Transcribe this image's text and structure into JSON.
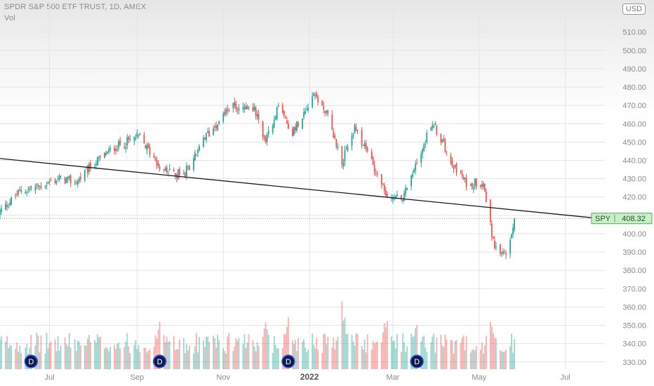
{
  "header": {
    "symbol_title": "SPDR S&P 500 ETF TRUST, 1D, AMEX",
    "volume_label": "Vol",
    "currency": "USD"
  },
  "colors": {
    "up": "#26a69a",
    "down": "#ef5350",
    "trendline": "#1a1a1a",
    "price_tag_bg": "#c8f0c8",
    "price_tag_border": "#4caf50"
  },
  "chart_data": {
    "type": "candlestick",
    "title": "SPDR S&P 500 ETF TRUST, 1D, AMEX",
    "ylim": [
      328,
      516
    ],
    "y_ticks": [
      330,
      340,
      350,
      360,
      370,
      380,
      390,
      400,
      410,
      420,
      430,
      440,
      450,
      460,
      470,
      480,
      490,
      500,
      510
    ],
    "y_tick_labels": [
      "330.00",
      "340.00",
      "350.00",
      "360.00",
      "370.00",
      "380.00",
      "390.00",
      "400.00",
      "410.00",
      "420.00",
      "430.00",
      "440.00",
      "450.00",
      "460.00",
      "470.00",
      "480.00",
      "490.00",
      "500.00",
      "510.00"
    ],
    "x_range": [
      "2021-05-27",
      "2022-07-29"
    ],
    "x_ticks": [
      {
        "date": "2021-07-01",
        "label": "Jul"
      },
      {
        "date": "2021-09-01",
        "label": "Sep"
      },
      {
        "date": "2021-11-01",
        "label": "Nov"
      },
      {
        "date": "2022-01-01",
        "label": "2022"
      },
      {
        "date": "2022-03-01",
        "label": "Mar"
      },
      {
        "date": "2022-05-01",
        "label": "May"
      },
      {
        "date": "2022-07-01",
        "label": "Jul"
      }
    ],
    "grid": true,
    "close_path": [
      {
        "date": "2021-05-27",
        "close": 412
      },
      {
        "date": "2021-06-10",
        "close": 423
      },
      {
        "date": "2021-06-25",
        "close": 426
      },
      {
        "date": "2021-07-08",
        "close": 430
      },
      {
        "date": "2021-07-20",
        "close": 428
      },
      {
        "date": "2021-08-01",
        "close": 438
      },
      {
        "date": "2021-08-16",
        "close": 447
      },
      {
        "date": "2021-09-02",
        "close": 453
      },
      {
        "date": "2021-09-20",
        "close": 434
      },
      {
        "date": "2021-10-04",
        "close": 432
      },
      {
        "date": "2021-10-20",
        "close": 453
      },
      {
        "date": "2021-11-05",
        "close": 469
      },
      {
        "date": "2021-11-22",
        "close": 469
      },
      {
        "date": "2021-12-01",
        "close": 451
      },
      {
        "date": "2021-12-10",
        "close": 470
      },
      {
        "date": "2021-12-20",
        "close": 455
      },
      {
        "date": "2022-01-04",
        "close": 477
      },
      {
        "date": "2022-01-14",
        "close": 464
      },
      {
        "date": "2022-01-24",
        "close": 439
      },
      {
        "date": "2022-02-02",
        "close": 457
      },
      {
        "date": "2022-02-14",
        "close": 440
      },
      {
        "date": "2022-02-24",
        "close": 421
      },
      {
        "date": "2022-03-08",
        "close": 419
      },
      {
        "date": "2022-03-29",
        "close": 461
      },
      {
        "date": "2022-04-12",
        "close": 439
      },
      {
        "date": "2022-04-22",
        "close": 427
      },
      {
        "date": "2022-04-28",
        "close": 428
      },
      {
        "date": "2022-05-04",
        "close": 428
      },
      {
        "date": "2022-05-12",
        "close": 391
      },
      {
        "date": "2022-05-20",
        "close": 389
      },
      {
        "date": "2022-05-26",
        "close": 408
      }
    ],
    "last_price": {
      "symbol": "SPY",
      "value": "408.32",
      "y": 408.32
    },
    "trendline": {
      "start": {
        "date": "2021-05-27",
        "value": 441
      },
      "end": {
        "date": "2022-07-29",
        "value": 408
      }
    },
    "dividend_markers": {
      "label": "D",
      "dates": [
        "2021-06-18",
        "2021-09-17",
        "2021-12-17",
        "2022-03-18"
      ]
    },
    "volume": {
      "label": "Vol",
      "typical": 0.5,
      "spikes": [
        {
          "date": "2021-09-17",
          "level": 0.95
        },
        {
          "date": "2021-12-01",
          "level": 0.8
        },
        {
          "date": "2021-12-17",
          "level": 0.9
        },
        {
          "date": "2022-01-24",
          "level": 1.2
        },
        {
          "date": "2022-02-24",
          "level": 0.95
        },
        {
          "date": "2022-03-18",
          "level": 0.9
        },
        {
          "date": "2022-05-09",
          "level": 0.85
        }
      ]
    }
  }
}
